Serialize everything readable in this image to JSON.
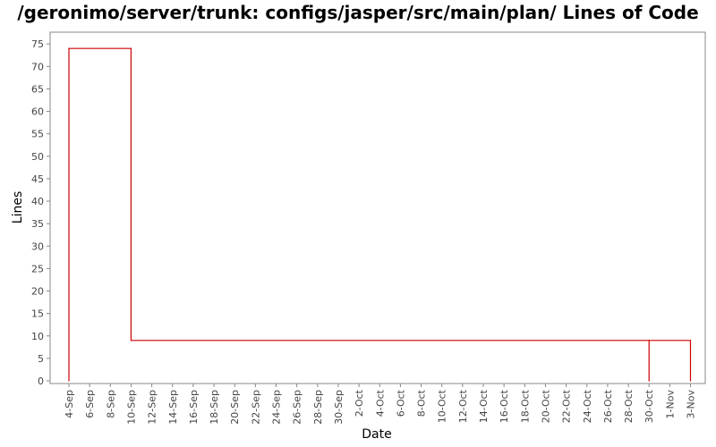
{
  "chart_data": {
    "type": "line",
    "title": "/geronimo/server/trunk: configs/jasper/src/main/plan/ Lines of Code",
    "xlabel": "Date",
    "ylabel": "Lines",
    "ylim": [
      0,
      77
    ],
    "yticks": [
      0,
      5,
      10,
      15,
      20,
      25,
      30,
      35,
      40,
      45,
      50,
      55,
      60,
      65,
      70,
      75
    ],
    "xticks": [
      "4-Sep",
      "6-Sep",
      "8-Sep",
      "10-Sep",
      "12-Sep",
      "14-Sep",
      "16-Sep",
      "18-Sep",
      "20-Sep",
      "22-Sep",
      "24-Sep",
      "26-Sep",
      "28-Sep",
      "30-Sep",
      "2-Oct",
      "4-Oct",
      "6-Oct",
      "8-Oct",
      "10-Oct",
      "12-Oct",
      "14-Oct",
      "16-Oct",
      "18-Oct",
      "20-Oct",
      "22-Oct",
      "24-Oct",
      "26-Oct",
      "28-Oct",
      "30-Oct",
      "1-Nov",
      "3-Nov"
    ],
    "grid": false,
    "series": [
      {
        "color": "#cc0000",
        "step": true,
        "points": [
          {
            "x": "4-Sep",
            "y": 0
          },
          {
            "x": "4-Sep",
            "y": 74
          },
          {
            "x": "10-Sep",
            "y": 74
          },
          {
            "x": "10-Sep",
            "y": 9
          },
          {
            "x": "30-Oct",
            "y": 9
          },
          {
            "x": "30-Oct",
            "y": 0
          },
          {
            "x": "30-Oct",
            "y": 9
          },
          {
            "x": "3-Nov",
            "y": 9
          },
          {
            "x": "3-Nov",
            "y": 0
          }
        ]
      }
    ]
  }
}
